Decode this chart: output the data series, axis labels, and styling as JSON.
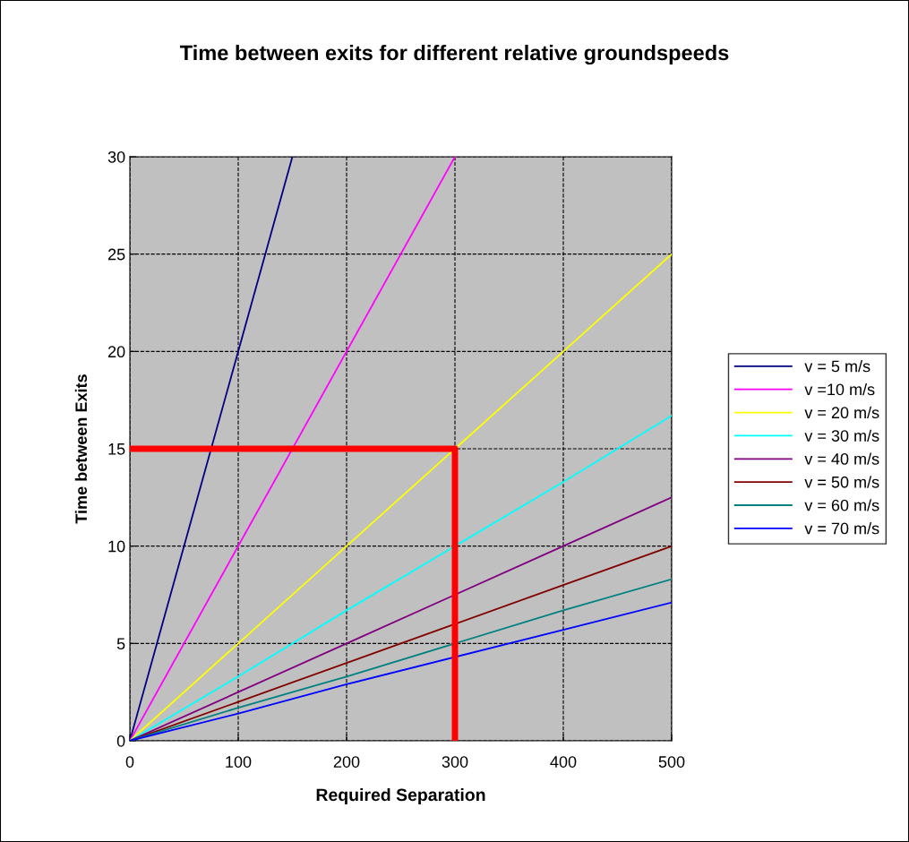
{
  "chart_data": {
    "type": "line",
    "title": "Time between exits for different relative groundspeeds",
    "xlabel": "Required Separation",
    "ylabel": "Time between Exits",
    "xlim": [
      0,
      500
    ],
    "xticks": [
      0,
      100,
      200,
      300,
      400,
      500
    ],
    "ylim": [
      0,
      30
    ],
    "yticks": [
      0,
      5,
      10,
      15,
      20,
      25,
      30
    ],
    "grid": true,
    "legend": "right",
    "marker": "none",
    "line_style": "solid",
    "series": [
      {
        "name": "v = 5 m/s",
        "color": "#000080",
        "x": [
          0,
          150
        ],
        "values": [
          0,
          30
        ]
      },
      {
        "name": "v =10 m/s",
        "color": "#ff00ff",
        "x": [
          0,
          300
        ],
        "values": [
          0,
          30
        ]
      },
      {
        "name": "v = 20 m/s",
        "color": "#ffff00",
        "x": [
          0,
          100,
          200,
          300,
          400,
          500
        ],
        "values": [
          0,
          5,
          10,
          15,
          20,
          25
        ]
      },
      {
        "name": "v = 30 m/s",
        "color": "#00ffff",
        "x": [
          0,
          100,
          200,
          400,
          500
        ],
        "values": [
          0,
          3.3,
          6.7,
          13.3,
          16.7
        ]
      },
      {
        "name": "v = 40 m/s",
        "color": "#800080",
        "x": [
          0,
          100,
          200,
          300,
          400,
          500
        ],
        "values": [
          0,
          2.5,
          5,
          7.5,
          10,
          12.5
        ]
      },
      {
        "name": "v = 50 m/s",
        "color": "#800000",
        "x": [
          0,
          100,
          200,
          300,
          400,
          500
        ],
        "values": [
          0,
          2,
          4,
          6,
          8,
          10
        ]
      },
      {
        "name": "v = 60 m/s",
        "color": "#008080",
        "x": [
          0,
          100,
          200,
          400,
          500
        ],
        "values": [
          0,
          1.7,
          3.3,
          6.7,
          8.3
        ]
      },
      {
        "name": "v = 70 m/s",
        "color": "#0000ff",
        "x": [
          0,
          100,
          200,
          400,
          500
        ],
        "values": [
          0,
          1.4,
          2.9,
          5.7,
          7.1
        ]
      },
      {
        "color": "#ff0000",
        "x": [
          0,
          300,
          300
        ],
        "values": [
          15,
          15,
          0
        ]
      }
    ]
  }
}
